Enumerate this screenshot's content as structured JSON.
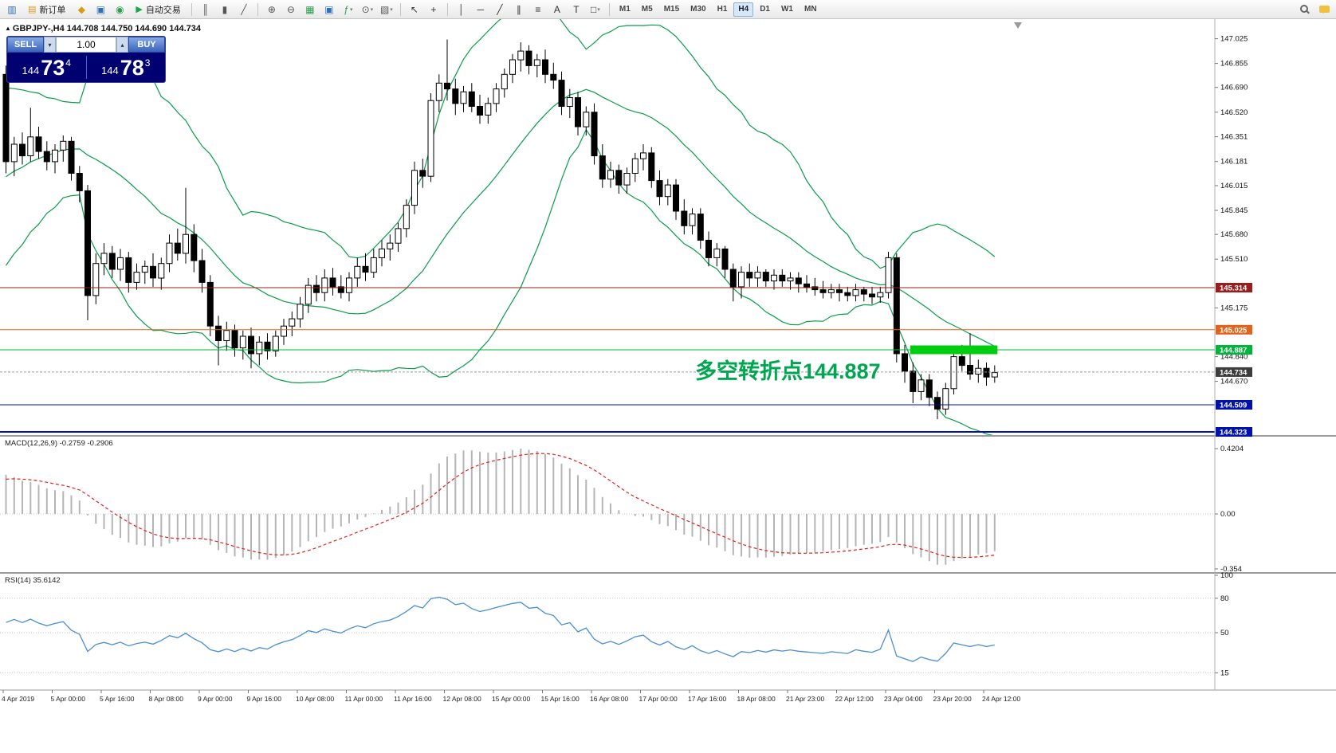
{
  "toolbar": {
    "items": [
      {
        "t": "icon",
        "name": "app-chart-icon",
        "g": "▥",
        "c": "#2f6fb4"
      },
      {
        "t": "btn",
        "name": "new-order-button",
        "g": "▤",
        "c": "#d79b18",
        "label": "新订单"
      },
      {
        "t": "icon",
        "name": "profiles-icon",
        "g": "◆",
        "c": "#d79b18"
      },
      {
        "t": "icon",
        "name": "market-watch-icon",
        "g": "▣",
        "c": "#2f6fb4"
      },
      {
        "t": "icon",
        "name": "navigator-icon",
        "g": "◉",
        "c": "#2e9e4f"
      },
      {
        "t": "btn",
        "name": "autotrading-button",
        "g": "▶",
        "c": "#17a84b",
        "label": "自动交易"
      },
      {
        "t": "sep"
      },
      {
        "t": "icon",
        "name": "bar-chart-icon",
        "g": "║",
        "c": "#555555"
      },
      {
        "t": "icon",
        "name": "candlestick-chart-icon",
        "g": "▮",
        "c": "#555555"
      },
      {
        "t": "icon",
        "name": "line-chart-icon",
        "g": "╱",
        "c": "#555555"
      },
      {
        "t": "sep"
      },
      {
        "t": "icon",
        "name": "zoom-in-icon",
        "g": "⊕",
        "c": "#555555"
      },
      {
        "t": "icon",
        "name": "zoom-out-icon",
        "g": "⊖",
        "c": "#555555"
      },
      {
        "t": "icon",
        "name": "grid-icon",
        "g": "▦",
        "c": "#2e9e4f"
      },
      {
        "t": "icon",
        "name": "tile-windows-icon",
        "g": "▣",
        "c": "#2f6fb4"
      },
      {
        "t": "icon",
        "name": "indicators-icon",
        "g": "ƒ",
        "c": "#2e9e4f",
        "dd": true
      },
      {
        "t": "icon",
        "name": "periods-icon",
        "g": "⊙",
        "c": "#555555",
        "dd": true
      },
      {
        "t": "icon",
        "name": "templates-icon",
        "g": "▧",
        "c": "#555555",
        "dd": true
      },
      {
        "t": "sep"
      },
      {
        "t": "icon",
        "name": "cursor-icon",
        "g": "↖",
        "c": "#333333"
      },
      {
        "t": "icon",
        "name": "crosshair-icon",
        "g": "+",
        "c": "#333333"
      },
      {
        "t": "sep"
      },
      {
        "t": "icon",
        "name": "vertical-line-tool-icon",
        "g": "│",
        "c": "#333333"
      },
      {
        "t": "icon",
        "name": "horizontal-line-tool-icon",
        "g": "─",
        "c": "#333333"
      },
      {
        "t": "icon",
        "name": "trendline-tool-icon",
        "g": "╱",
        "c": "#333333"
      },
      {
        "t": "icon",
        "name": "channel-tool-icon",
        "g": "∥",
        "c": "#333333"
      },
      {
        "t": "icon",
        "name": "fibonacci-tool-icon",
        "g": "≡",
        "c": "#333333"
      },
      {
        "t": "icon",
        "name": "text-tool-icon",
        "g": "A",
        "c": "#333333"
      },
      {
        "t": "icon",
        "name": "label-tool-icon",
        "g": "T",
        "c": "#333333"
      },
      {
        "t": "icon",
        "name": "shapes-tool-icon",
        "g": "□",
        "c": "#333333",
        "dd": true
      },
      {
        "t": "sep"
      },
      {
        "t": "tf-group"
      },
      {
        "t": "spacer"
      },
      {
        "t": "css",
        "name": "search-icon"
      },
      {
        "t": "css",
        "name": "chat-icon"
      }
    ],
    "timeframes": [
      "M1",
      "M5",
      "M15",
      "M30",
      "H1",
      "H4",
      "D1",
      "W1",
      "MN"
    ],
    "active_timeframe": "H4"
  },
  "chart": {
    "direction_icon": "▲",
    "header": "GBPJPY-,H4 144.708 144.750 144.690 144.734",
    "annotation_text": "多空转折点144.887",
    "annotation_color": "#00a650"
  },
  "trade_panel": {
    "sell_label": "SELL",
    "buy_label": "BUY",
    "volume": "1.00",
    "spin_down": "▾",
    "spin_up": "▴",
    "sell_prefix": "144",
    "sell_big": "73",
    "sell_sup": "4",
    "buy_prefix": "144",
    "buy_big": "78",
    "buy_sup": "3"
  },
  "price_scale": {
    "ticks": [
      "147.025",
      "146.855",
      "146.690",
      "146.520",
      "146.351",
      "146.181",
      "146.015",
      "145.845",
      "145.680",
      "145.510",
      "145.175",
      "144.840",
      "144.670"
    ],
    "markers": [
      {
        "value": "145.314",
        "bg": "#9b1c1c"
      },
      {
        "value": "145.025",
        "bg": "#e2641b"
      },
      {
        "value": "144.887",
        "bg": "#00b43c"
      },
      {
        "value": "144.734",
        "bg": "#3c3c3c"
      },
      {
        "value": "144.509",
        "bg": "#0011b0"
      },
      {
        "value": "144.323",
        "bg": "#0011b0"
      }
    ]
  },
  "macd_panel": {
    "label": "MACD(12,26,9) -0.2759 -0.2906",
    "scale_labels": [
      "0.4204",
      "0.00",
      "-0.354"
    ]
  },
  "rsi_panel": {
    "label": "RSI(14) 35.6142",
    "scale_labels": [
      "100",
      "80",
      "50",
      "15"
    ],
    "levels": [
      80,
      50,
      15
    ]
  },
  "time_axis": [
    "4 Apr 2019",
    "5 Apr 00:00",
    "5 Apr 16:00",
    "8 Apr 08:00",
    "9 Apr 00:00",
    "9 Apr 16:00",
    "10 Apr 08:00",
    "11 Apr 00:00",
    "11 Apr 16:00",
    "12 Apr 08:00",
    "15 Apr 00:00",
    "15 Apr 16:00",
    "16 Apr 08:00",
    "17 Apr 00:00",
    "17 Apr 16:00",
    "18 Apr 08:00",
    "21 Apr 23:00",
    "22 Apr 12:00",
    "23 Apr 04:00",
    "23 Apr 20:00",
    "24 Apr 12:00"
  ],
  "chart_data": {
    "type": "candlestick",
    "symbol": "GBPJPY-",
    "timeframe": "H4",
    "last_ohlc": {
      "open": "144.708",
      "high": "144.750",
      "low": "144.690",
      "close": "144.734"
    },
    "candles": [
      [
        146.78,
        146.84,
        146.1,
        146.18
      ],
      [
        146.18,
        146.35,
        146.08,
        146.3
      ],
      [
        146.3,
        146.38,
        146.16,
        146.22
      ],
      [
        146.22,
        146.55,
        146.18,
        146.35
      ],
      [
        146.35,
        146.42,
        146.2,
        146.25
      ],
      [
        146.25,
        146.32,
        146.12,
        146.18
      ],
      [
        146.18,
        146.3,
        146.1,
        146.26
      ],
      [
        146.26,
        146.36,
        146.18,
        146.32
      ],
      [
        146.32,
        146.35,
        146.05,
        146.1
      ],
      [
        146.1,
        146.15,
        145.9,
        145.98
      ],
      [
        145.98,
        146.02,
        145.09,
        145.26
      ],
      [
        145.26,
        145.55,
        145.2,
        145.48
      ],
      [
        145.48,
        145.62,
        145.4,
        145.55
      ],
      [
        145.55,
        145.6,
        145.38,
        145.44
      ],
      [
        145.44,
        145.58,
        145.36,
        145.52
      ],
      [
        145.52,
        145.56,
        145.28,
        145.35
      ],
      [
        145.35,
        145.48,
        145.3,
        145.42
      ],
      [
        145.42,
        145.5,
        145.34,
        145.46
      ],
      [
        145.46,
        145.55,
        145.32,
        145.38
      ],
      [
        145.38,
        145.52,
        145.3,
        145.48
      ],
      [
        145.48,
        145.68,
        145.42,
        145.62
      ],
      [
        145.62,
        145.72,
        145.5,
        145.55
      ],
      [
        145.55,
        146.0,
        145.48,
        145.68
      ],
      [
        145.68,
        145.75,
        145.42,
        145.5
      ],
      [
        145.5,
        145.58,
        145.28,
        145.35
      ],
      [
        145.35,
        145.4,
        144.98,
        145.05
      ],
      [
        145.05,
        145.12,
        144.78,
        144.95
      ],
      [
        144.95,
        145.08,
        144.88,
        145.02
      ],
      [
        145.02,
        145.06,
        144.84,
        144.9
      ],
      [
        144.9,
        145.02,
        144.82,
        144.98
      ],
      [
        144.98,
        145.04,
        144.76,
        144.86
      ],
      [
        144.86,
        144.98,
        144.78,
        144.94
      ],
      [
        144.94,
        145.0,
        144.82,
        144.88
      ],
      [
        144.88,
        145.02,
        144.84,
        144.98
      ],
      [
        144.98,
        145.1,
        144.92,
        145.05
      ],
      [
        145.05,
        145.15,
        144.98,
        145.1
      ],
      [
        145.1,
        145.25,
        145.04,
        145.2
      ],
      [
        145.2,
        145.38,
        145.14,
        145.33
      ],
      [
        145.33,
        145.4,
        145.22,
        145.28
      ],
      [
        145.28,
        145.44,
        145.22,
        145.38
      ],
      [
        145.38,
        145.45,
        145.26,
        145.32
      ],
      [
        145.32,
        145.4,
        145.24,
        145.28
      ],
      [
        145.28,
        145.42,
        145.22,
        145.38
      ],
      [
        145.38,
        145.52,
        145.32,
        145.46
      ],
      [
        145.46,
        145.55,
        145.36,
        145.42
      ],
      [
        145.42,
        145.58,
        145.38,
        145.52
      ],
      [
        145.52,
        145.64,
        145.46,
        145.58
      ],
      [
        145.58,
        145.68,
        145.5,
        145.62
      ],
      [
        145.62,
        145.76,
        145.56,
        145.72
      ],
      [
        145.72,
        145.92,
        145.66,
        145.88
      ],
      [
        145.88,
        146.18,
        145.82,
        146.12
      ],
      [
        146.12,
        146.2,
        146.0,
        146.08
      ],
      [
        146.08,
        146.65,
        146.04,
        146.6
      ],
      [
        146.6,
        146.78,
        146.52,
        146.72
      ],
      [
        146.72,
        147.02,
        146.6,
        146.68
      ],
      [
        146.68,
        146.75,
        146.5,
        146.58
      ],
      [
        146.58,
        146.7,
        146.52,
        146.66
      ],
      [
        146.66,
        146.72,
        146.52,
        146.56
      ],
      [
        146.56,
        146.64,
        146.44,
        146.5
      ],
      [
        146.5,
        146.62,
        146.44,
        146.58
      ],
      [
        146.58,
        146.72,
        146.52,
        146.68
      ],
      [
        146.68,
        146.82,
        146.62,
        146.78
      ],
      [
        146.78,
        146.92,
        146.72,
        146.88
      ],
      [
        146.88,
        147.0,
        146.8,
        146.94
      ],
      [
        146.94,
        146.98,
        146.78,
        146.84
      ],
      [
        146.84,
        146.92,
        146.76,
        146.88
      ],
      [
        146.88,
        146.95,
        146.72,
        146.78
      ],
      [
        146.78,
        146.86,
        146.68,
        146.74
      ],
      [
        146.74,
        146.8,
        146.5,
        146.56
      ],
      [
        146.56,
        146.68,
        146.48,
        146.62
      ],
      [
        146.62,
        146.66,
        146.36,
        146.42
      ],
      [
        146.42,
        146.56,
        146.36,
        146.52
      ],
      [
        146.52,
        146.58,
        146.16,
        146.22
      ],
      [
        146.22,
        146.3,
        146.0,
        146.06
      ],
      [
        146.06,
        146.18,
        146.0,
        146.12
      ],
      [
        146.12,
        146.16,
        145.96,
        146.02
      ],
      [
        146.02,
        146.14,
        145.96,
        146.1
      ],
      [
        146.1,
        146.24,
        146.04,
        146.2
      ],
      [
        146.2,
        146.3,
        146.12,
        146.24
      ],
      [
        146.24,
        146.28,
        146.0,
        146.05
      ],
      [
        146.05,
        146.12,
        145.88,
        145.94
      ],
      [
        145.94,
        146.06,
        145.88,
        146.02
      ],
      [
        146.02,
        146.06,
        145.78,
        145.84
      ],
      [
        145.84,
        145.92,
        145.68,
        145.74
      ],
      [
        145.74,
        145.86,
        145.68,
        145.82
      ],
      [
        145.82,
        145.86,
        145.58,
        145.64
      ],
      [
        145.64,
        145.7,
        145.46,
        145.52
      ],
      [
        145.52,
        145.62,
        145.46,
        145.58
      ],
      [
        145.58,
        145.6,
        145.38,
        145.44
      ],
      [
        145.44,
        145.48,
        145.22,
        145.32
      ],
      [
        145.32,
        145.46,
        145.24,
        145.42
      ],
      [
        145.42,
        145.48,
        145.32,
        145.38
      ],
      [
        145.38,
        145.46,
        145.32,
        145.42
      ],
      [
        145.42,
        145.44,
        145.32,
        145.36
      ],
      [
        145.36,
        145.44,
        145.3,
        145.4
      ],
      [
        145.4,
        145.44,
        145.32,
        145.36
      ],
      [
        145.36,
        145.42,
        145.3,
        145.38
      ],
      [
        145.38,
        145.42,
        145.28,
        145.34
      ],
      [
        145.34,
        145.4,
        145.28,
        145.32
      ],
      [
        145.32,
        145.38,
        145.26,
        145.3
      ],
      [
        145.3,
        145.36,
        145.24,
        145.28
      ],
      [
        145.28,
        145.34,
        145.24,
        145.3
      ],
      [
        145.3,
        145.34,
        145.22,
        145.28
      ],
      [
        145.28,
        145.32,
        145.22,
        145.26
      ],
      [
        145.26,
        145.34,
        145.22,
        145.3
      ],
      [
        145.3,
        145.32,
        145.22,
        145.27
      ],
      [
        145.27,
        145.32,
        145.2,
        145.25
      ],
      [
        145.25,
        145.32,
        145.21,
        145.28
      ],
      [
        145.28,
        145.56,
        145.24,
        145.52
      ],
      [
        145.52,
        145.55,
        144.8,
        144.86
      ],
      [
        144.86,
        144.92,
        144.66,
        144.74
      ],
      [
        144.74,
        144.8,
        144.52,
        144.6
      ],
      [
        144.6,
        144.72,
        144.54,
        144.68
      ],
      [
        144.68,
        144.72,
        144.5,
        144.56
      ],
      [
        144.56,
        144.6,
        144.41,
        144.48
      ],
      [
        144.48,
        144.66,
        144.44,
        144.62
      ],
      [
        144.62,
        144.88,
        144.58,
        144.84
      ],
      [
        144.84,
        144.92,
        144.74,
        144.78
      ],
      [
        144.78,
        145.0,
        144.68,
        144.72
      ],
      [
        144.72,
        144.82,
        144.66,
        144.76
      ],
      [
        144.76,
        144.8,
        144.64,
        144.7
      ],
      [
        144.7,
        144.78,
        144.66,
        144.73
      ]
    ],
    "bollinger": {
      "period": 20,
      "deviation": 2,
      "color": "#0a9c4a"
    },
    "horizontal_lines": [
      {
        "price": 145.314,
        "color": "#9b1c1c",
        "width": 1
      },
      {
        "price": 145.025,
        "color": "#e2641b",
        "width": 1
      },
      {
        "price": 144.887,
        "color": "#00b43c",
        "width": 1
      },
      {
        "price": 144.734,
        "color": "#9a9a9a",
        "width": 1,
        "dash": "3,2"
      },
      {
        "price": 144.509,
        "color": "#0011b0",
        "width": 1
      },
      {
        "price": 144.323,
        "color": "#0011b0",
        "width": 2
      }
    ],
    "highlight_rectangle": {
      "start_index": 111,
      "end_index": 121,
      "price": 144.887,
      "color": "#00cc10"
    },
    "macd": {
      "fast": 12,
      "slow": 26,
      "signal": 9,
      "current": "-0.2759",
      "current_signal": "-0.2906"
    },
    "rsi": {
      "period": 14,
      "current": "35.6142"
    }
  }
}
